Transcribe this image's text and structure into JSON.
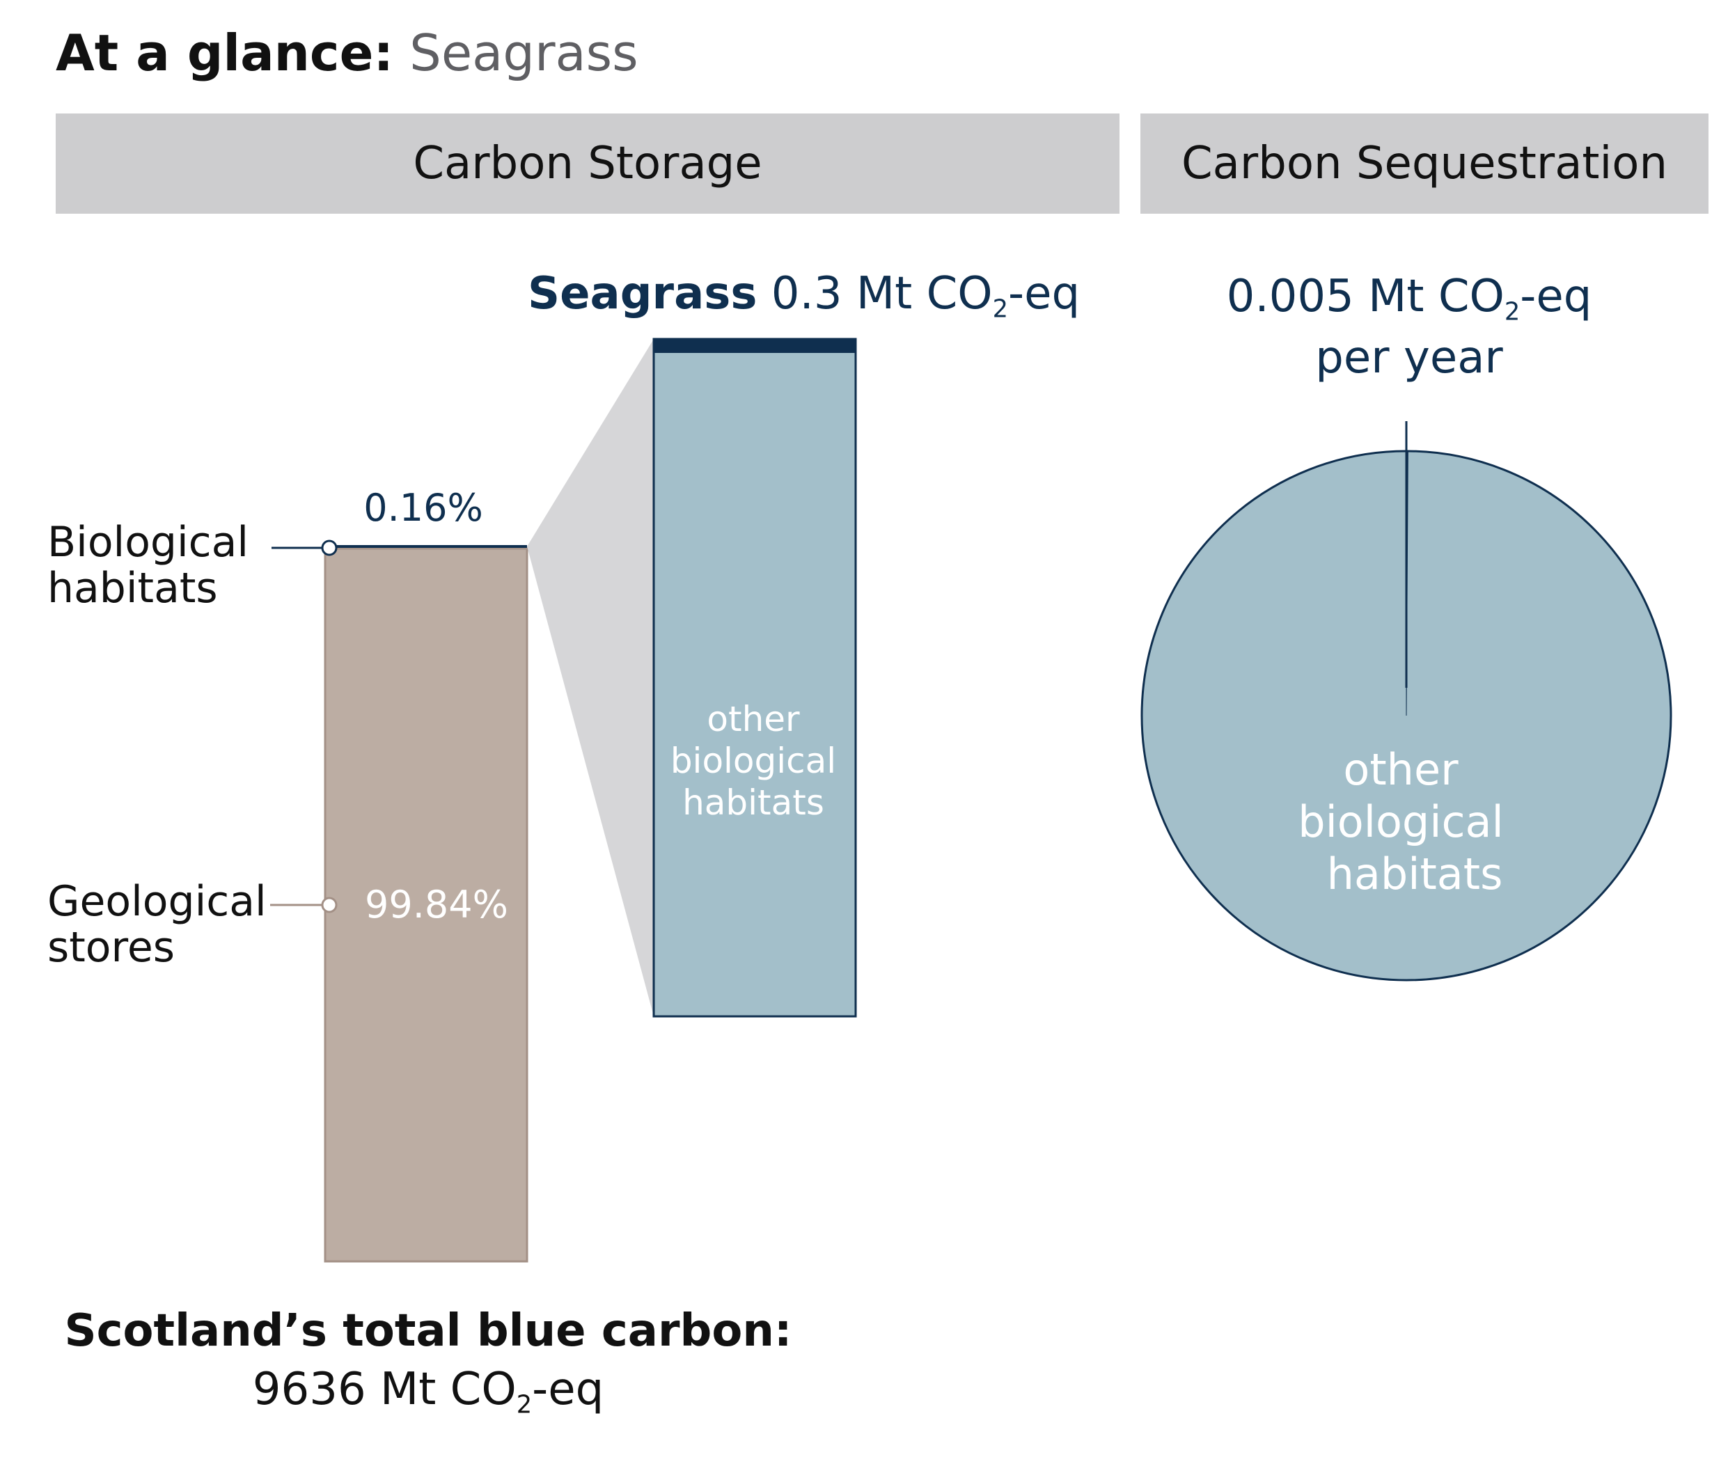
{
  "header": {
    "title_bold": "At a glance:",
    "title_light": "Seagrass"
  },
  "sections": {
    "storage": "Carbon Storage",
    "sequestration": "Carbon Sequestration"
  },
  "colors": {
    "band": "#cdcdcf",
    "navy": "#0f2f4f",
    "geological": "#bcada3",
    "geological_edge": "#a39086",
    "biological": "#a3bfca",
    "funnel": "#d6d6d8"
  },
  "chart_data": [
    {
      "type": "bar",
      "categories": [
        "Geological stores",
        "Biological habitats"
      ],
      "values": [
        99.84,
        0.16
      ],
      "unit": "%",
      "stacked": true,
      "labels": {
        "biological": [
          "Biological",
          "habitats"
        ],
        "geological": [
          "Geological",
          "stores"
        ],
        "biological_pct": "0.16%",
        "geological_pct": "99.84%"
      },
      "total": {
        "heading": "Scotland’s total blue carbon:",
        "value": "9636",
        "unit_pre": "Mt CO",
        "unit_sub": "2",
        "unit_post": "-eq"
      }
    },
    {
      "type": "bar",
      "categories": [
        "Seagrass",
        "other biological habitats"
      ],
      "values": [
        0.3,
        15.12
      ],
      "stacked": true,
      "labels": {
        "name": "Seagrass",
        "value": "0.3",
        "unit_pre": "Mt CO",
        "unit_sub": "2",
        "unit_post": "-eq",
        "other": [
          "other",
          "biological",
          "habitats"
        ]
      }
    },
    {
      "type": "pie",
      "categories": [
        "Seagrass",
        "other biological habitats"
      ],
      "values": [
        0.005,
        4.995
      ],
      "labels": {
        "value": "0.005",
        "unit_pre": "Mt CO",
        "unit_sub": "2",
        "unit_post": "-eq",
        "per": "per year",
        "other": [
          "other",
          "biological",
          "habitats"
        ]
      }
    }
  ]
}
